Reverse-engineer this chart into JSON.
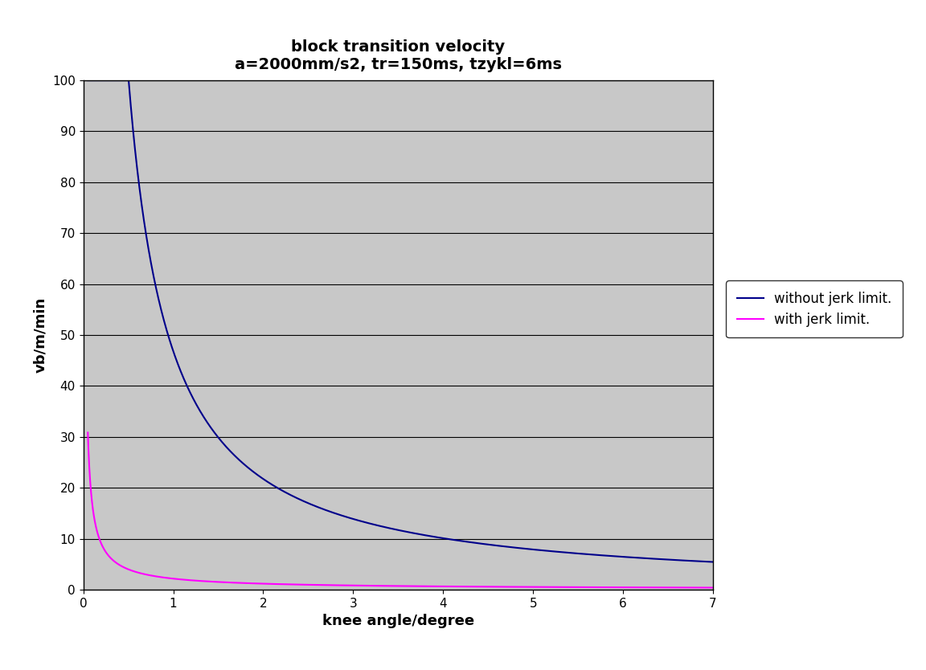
{
  "title_line1": "block transition velocity",
  "title_line2": "a=2000mm/s2, tr=150ms, tzykl=6ms",
  "xlabel": "knee angle/degree",
  "ylabel": "vb/m/min",
  "xlim": [
    0,
    7
  ],
  "ylim": [
    0,
    100
  ],
  "xticks": [
    0,
    1,
    2,
    3,
    4,
    5,
    6,
    7
  ],
  "yticks": [
    0,
    10,
    20,
    30,
    40,
    50,
    60,
    70,
    80,
    90,
    100
  ],
  "plot_bg_color": "#c8c8c8",
  "fig_bg_color": "#ffffff",
  "line1_color": "#00008B",
  "line2_color": "#FF00FF",
  "line1_label": "without jerk limit.",
  "line2_label": "with jerk limit.",
  "blue_k": 46.8,
  "blue_p": 1.107,
  "pink_k": 2.15,
  "pink_p": 0.889,
  "x_start": 0.05,
  "x_end": 7.0,
  "n_points": 3000
}
